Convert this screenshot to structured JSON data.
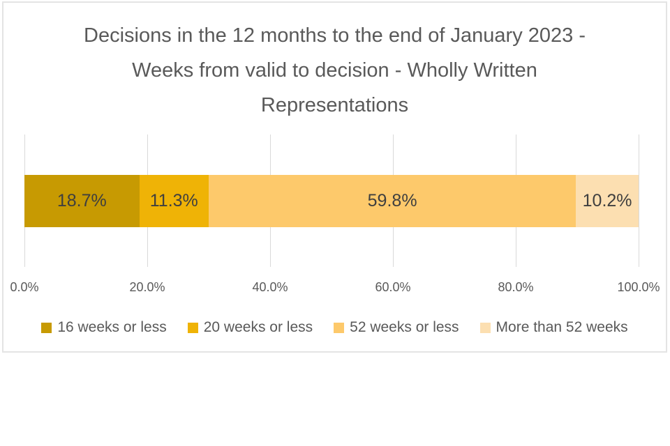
{
  "chart_data": {
    "type": "bar",
    "variant": "horizontal-stacked",
    "title": "Decisions in the 12 months to the end of January 2023 - Weeks from valid to decision - Wholly Written Representations",
    "title_lines": [
      "Decisions in the 12 months to the end of January 2023 -",
      "Weeks from valid to decision - Wholly Written",
      "Representations"
    ],
    "categories": [
      "Wholly Written Representations"
    ],
    "series": [
      {
        "name": "16 weeks or less",
        "value_pct": 18.7,
        "display": "18.7%",
        "color": "#c79a02"
      },
      {
        "name": "20 weeks or less",
        "value_pct": 11.3,
        "display": "11.3%",
        "color": "#efb306"
      },
      {
        "name": "52 weeks or less",
        "value_pct": 59.8,
        "display": "59.8%",
        "color": "#fdc96b"
      },
      {
        "name": "More than 52 weeks",
        "value_pct": 10.2,
        "display": "10.2%",
        "color": "#fcdfb1"
      }
    ],
    "x_axis": {
      "min": 0,
      "max": 100,
      "tick_labels": [
        "0.0%",
        "20.0%",
        "40.0%",
        "60.0%",
        "80.0%",
        "100.0%"
      ],
      "grid": true
    },
    "legend_position": "bottom",
    "colors": {
      "title_text": "#595959",
      "axis_text": "#595959",
      "data_label_text": "#3f3f3f",
      "gridline": "#d9d9d9",
      "card_border": "#e4e4e4",
      "background": "#ffffff"
    }
  }
}
